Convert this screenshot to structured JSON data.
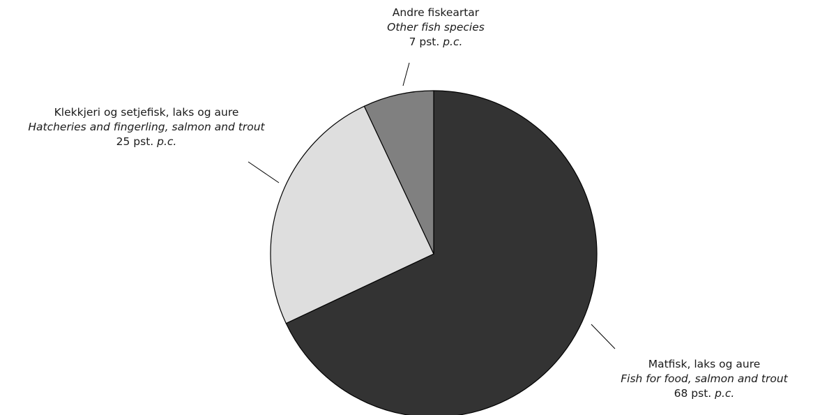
{
  "chart_data": {
    "type": "pie",
    "start_angle_deg": 0,
    "direction": "clockwise",
    "slices": [
      {
        "key": "matfisk",
        "label_no": "Matfisk, laks og aure",
        "label_en": "Fish for food, salmon and trout",
        "value": 68,
        "value_text": "68 pst.",
        "unit_en": "p.c.",
        "color": "#333333"
      },
      {
        "key": "klekk",
        "label_no": "Klekkjeri og setjefisk, laks og aure",
        "label_en": "Hatcheries and fingerling, salmon and trout",
        "value": 25,
        "value_text": "25 pst.",
        "unit_en": "p.c.",
        "color": "#dedede"
      },
      {
        "key": "andre",
        "label_no": "Andre fiskeartar",
        "label_en": "Other fish species",
        "value": 7,
        "value_text": "7 pst.",
        "unit_en": "p.c.",
        "color": "#808080"
      }
    ]
  }
}
